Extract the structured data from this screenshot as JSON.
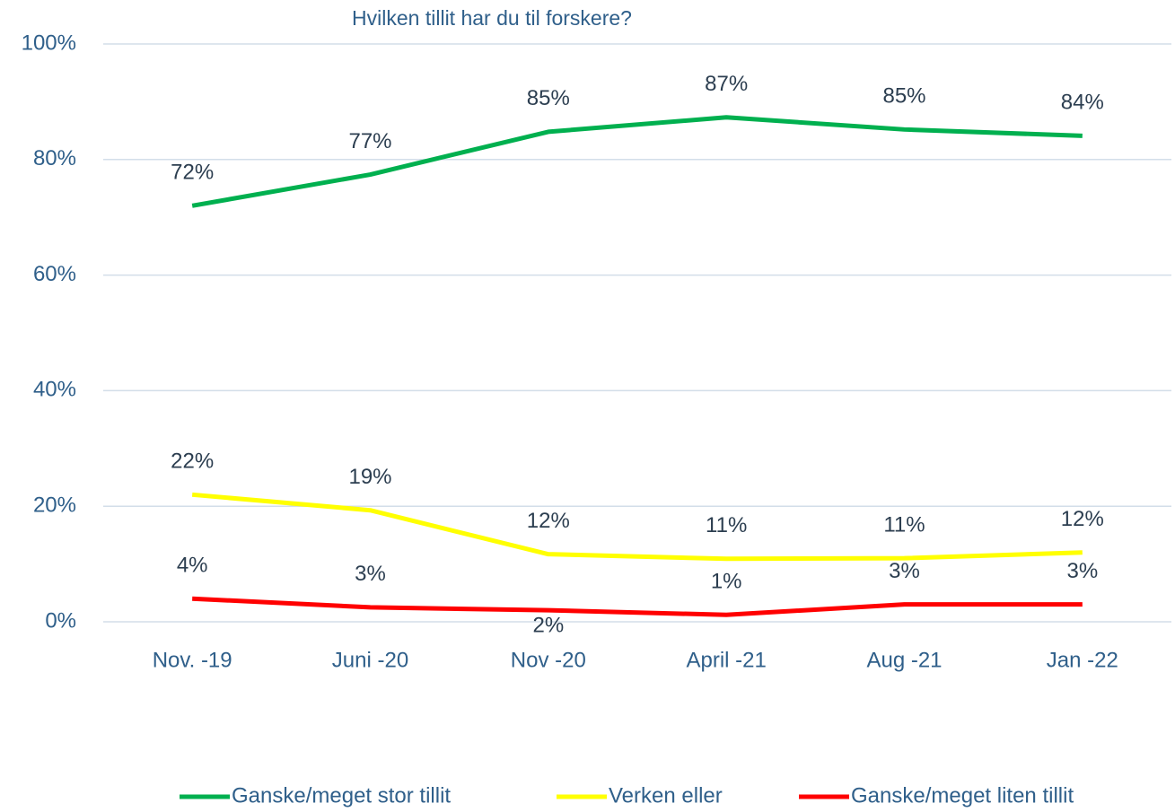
{
  "chart_data": {
    "type": "line",
    "title": "Hvilken tillit har du til forskere?",
    "categories": [
      "Nov. -19",
      "Juni -20",
      "Nov -20",
      "April -21",
      "Aug -21",
      "Jan -22"
    ],
    "series": [
      {
        "name": "Ganske/meget stor tillit",
        "color": "#00b04f",
        "values": [
          72,
          77.4,
          84.8,
          87.3,
          85.2,
          84.1
        ],
        "value_labels": [
          "72%",
          "77%",
          "85%",
          "87%",
          "85%",
          "84%"
        ]
      },
      {
        "name": "Verken eller",
        "color": "#ffff00",
        "values": [
          22,
          19.3,
          11.7,
          10.9,
          11,
          12
        ],
        "value_labels": [
          "22%",
          "19%",
          "12%",
          "11%",
          "11%",
          "12%"
        ]
      },
      {
        "name": "Ganske/meget liten tillit",
        "color": "#ff0000",
        "values": [
          4,
          2.5,
          2,
          1.2,
          3,
          3
        ],
        "value_labels": [
          "4%",
          "3%",
          "2%",
          "1%",
          "3%",
          "3%"
        ]
      }
    ],
    "ylim": [
      0,
      100
    ],
    "yticks": [
      {
        "value": 0,
        "label": "0%"
      },
      {
        "value": 20,
        "label": "20%"
      },
      {
        "value": 40,
        "label": "40%"
      },
      {
        "value": 60,
        "label": "60%"
      },
      {
        "value": 80,
        "label": "80%"
      },
      {
        "value": 100,
        "label": "100%"
      }
    ],
    "grid": true,
    "legend": "bottom"
  }
}
